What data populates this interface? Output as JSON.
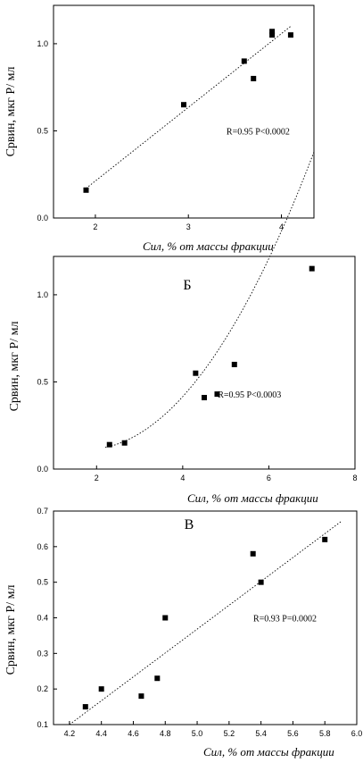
{
  "chart_data": [
    {
      "type": "scatter",
      "panel_label": "",
      "xlabel": "Сил, % от массы фракции",
      "ylabel": "Cрвин, мкг Р/ мл",
      "xlim": [
        1.55,
        4.35
      ],
      "ylim": [
        0.0,
        1.22
      ],
      "xticks": [
        "2",
        "3",
        "4"
      ],
      "xtick_values": [
        2,
        3,
        4
      ],
      "yticks": [
        "0.0",
        "0.5",
        "1.0"
      ],
      "ytick_values": [
        0.0,
        0.5,
        1.0
      ],
      "points": [
        {
          "x": 1.9,
          "y": 0.16
        },
        {
          "x": 2.95,
          "y": 0.65
        },
        {
          "x": 3.6,
          "y": 0.9
        },
        {
          "x": 3.7,
          "y": 0.8
        },
        {
          "x": 3.9,
          "y": 1.05
        },
        {
          "x": 3.9,
          "y": 1.07
        },
        {
          "x": 4.1,
          "y": 1.05
        }
      ],
      "fit": {
        "kind": "linear",
        "from": [
          1.9,
          0.17
        ],
        "to": [
          4.1,
          1.1
        ]
      },
      "annotation": "R=0.95    P<0.0002",
      "annotation_pos": [
        3.75,
        0.48
      ]
    },
    {
      "type": "scatter",
      "panel_label": "Б",
      "xlabel": "Сил, % от массы фракции",
      "ylabel": "Cрвин, мкг Р/ мл",
      "xlim": [
        1.0,
        8.0
      ],
      "ylim": [
        0.0,
        1.22
      ],
      "xticks": [
        "2",
        "4",
        "6",
        "8"
      ],
      "xtick_values": [
        2,
        4,
        6,
        8
      ],
      "yticks": [
        "0.0",
        "0.5",
        "1.0"
      ],
      "ytick_values": [
        0.0,
        0.5,
        1.0
      ],
      "points": [
        {
          "x": 2.3,
          "y": 0.14
        },
        {
          "x": 2.65,
          "y": 0.15
        },
        {
          "x": 4.3,
          "y": 0.55
        },
        {
          "x": 4.5,
          "y": 0.41
        },
        {
          "x": 4.8,
          "y": 0.43
        },
        {
          "x": 5.2,
          "y": 0.6
        },
        {
          "x": 7.0,
          "y": 1.15
        }
      ],
      "fit": {
        "kind": "quadratic",
        "coef": [
          0.0616,
          -0.22,
          0.31
        ],
        "from": 2.2,
        "to": 7.05
      },
      "annotation": "R=0.95   P<0.0003",
      "annotation_pos": [
        5.55,
        0.41
      ]
    },
    {
      "type": "scatter",
      "panel_label": "В",
      "xlabel": "Сил, % от массы фракции",
      "ylabel": "Cрвин, мкг Р/ мл",
      "xlim": [
        4.1,
        6.0
      ],
      "ylim": [
        0.1,
        0.7
      ],
      "xticks": [
        "4.2",
        "4.4",
        "4.6",
        "4.8",
        "5.0",
        "5.2",
        "5.4",
        "5.6",
        "5.8",
        "6.0"
      ],
      "xtick_values": [
        4.2,
        4.4,
        4.6,
        4.8,
        5.0,
        5.2,
        5.4,
        5.6,
        5.8,
        6.0
      ],
      "yticks": [
        "0.1",
        "0.2",
        "0.3",
        "0.4",
        "0.5",
        "0.6",
        "0.7"
      ],
      "ytick_values": [
        0.1,
        0.2,
        0.3,
        0.4,
        0.5,
        0.6,
        0.7
      ],
      "points": [
        {
          "x": 4.3,
          "y": 0.15
        },
        {
          "x": 4.4,
          "y": 0.2
        },
        {
          "x": 4.65,
          "y": 0.18
        },
        {
          "x": 4.75,
          "y": 0.23
        },
        {
          "x": 4.8,
          "y": 0.4
        },
        {
          "x": 5.35,
          "y": 0.58
        },
        {
          "x": 5.4,
          "y": 0.5
        },
        {
          "x": 5.8,
          "y": 0.62
        }
      ],
      "fit": {
        "kind": "linear",
        "from": [
          4.2,
          0.1
        ],
        "to": [
          5.9,
          0.67
        ]
      },
      "annotation": "R=0.93 P=0.0002",
      "annotation_pos": [
        5.55,
        0.39
      ]
    }
  ]
}
